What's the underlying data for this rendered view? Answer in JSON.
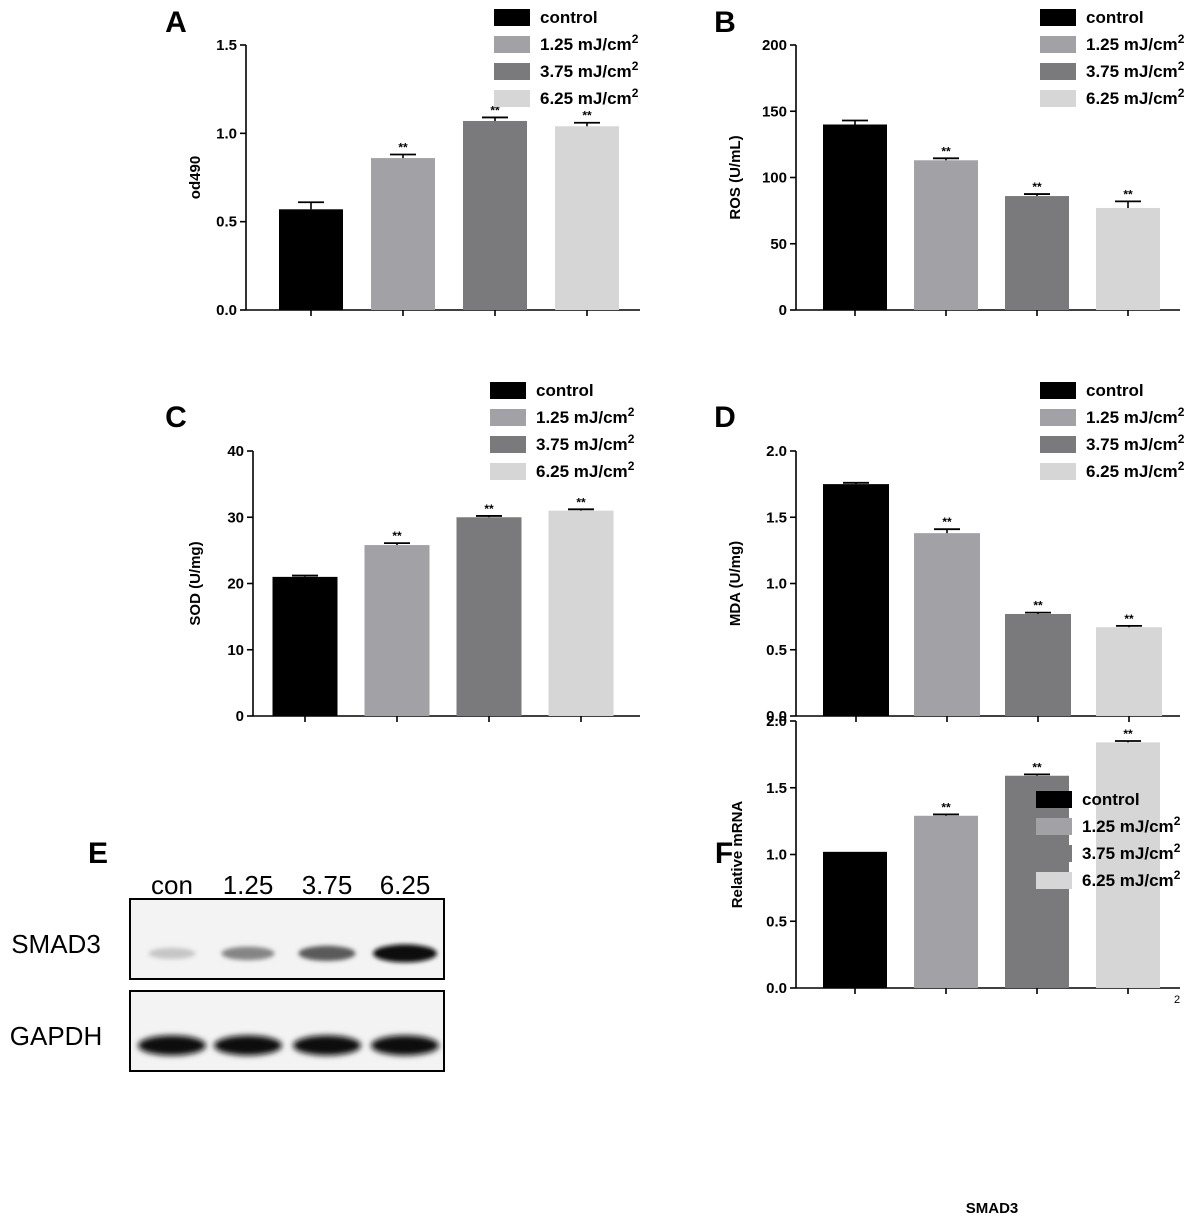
{
  "colors": {
    "control": "#000000",
    "d125": "#a1a1a6",
    "d375": "#7a7a7c",
    "d625": "#d6d6d6"
  },
  "legend": {
    "entries": [
      {
        "label": "control",
        "sup": "",
        "color_key": "control"
      },
      {
        "label": "1.25 mJ/cm",
        "sup": "2",
        "color_key": "d125"
      },
      {
        "label": "3.75 mJ/cm",
        "sup": "2",
        "color_key": "d375"
      },
      {
        "label": "6.25 mJ/cm",
        "sup": "2",
        "color_key": "d625"
      }
    ]
  },
  "chart_data": [
    {
      "panel": "A",
      "type": "bar",
      "ylabel": "od490",
      "xlabel": "",
      "ylim": [
        0,
        1.5
      ],
      "yticks": [
        0.0,
        0.5,
        1.0,
        1.5
      ],
      "ytick_labels": [
        "0.0",
        "0.5",
        "1.0",
        "1.5"
      ],
      "series": [
        {
          "name": "control",
          "value": 0.57,
          "error": 0.04,
          "significance": ""
        },
        {
          "name": "1.25 mJ/cm2",
          "value": 0.86,
          "error": 0.02,
          "significance": "**"
        },
        {
          "name": "3.75 mJ/cm2",
          "value": 1.07,
          "error": 0.02,
          "significance": "**"
        },
        {
          "name": "6.25 mJ/cm2",
          "value": 1.04,
          "error": 0.02,
          "significance": "**"
        }
      ]
    },
    {
      "panel": "B",
      "type": "bar",
      "ylabel": "ROS (U/mL)",
      "xlabel": "",
      "ylim": [
        0,
        200
      ],
      "yticks": [
        0,
        50,
        100,
        150,
        200
      ],
      "ytick_labels": [
        "0",
        "50",
        "100",
        "150",
        "200"
      ],
      "series": [
        {
          "name": "control",
          "value": 140,
          "error": 3,
          "significance": ""
        },
        {
          "name": "1.25 mJ/cm2",
          "value": 113,
          "error": 1.5,
          "significance": "**"
        },
        {
          "name": "3.75 mJ/cm2",
          "value": 86,
          "error": 1.5,
          "significance": "**"
        },
        {
          "name": "6.25 mJ/cm2",
          "value": 77,
          "error": 5,
          "significance": "**"
        }
      ]
    },
    {
      "panel": "C",
      "type": "bar",
      "ylabel": "SOD (U/mg)",
      "xlabel": "",
      "ylim": [
        0,
        40
      ],
      "yticks": [
        0,
        10,
        20,
        30,
        40
      ],
      "ytick_labels": [
        "0",
        "10",
        "20",
        "30",
        "40"
      ],
      "series": [
        {
          "name": "control",
          "value": 21,
          "error": 0.2,
          "significance": ""
        },
        {
          "name": "1.25 mJ/cm2",
          "value": 25.8,
          "error": 0.3,
          "significance": "**"
        },
        {
          "name": "3.75 mJ/cm2",
          "value": 30.0,
          "error": 0.2,
          "significance": "**"
        },
        {
          "name": "6.25 mJ/cm2",
          "value": 31.0,
          "error": 0.2,
          "significance": "**"
        }
      ]
    },
    {
      "panel": "D",
      "type": "bar",
      "ylabel": "MDA (U/mg)",
      "xlabel": "",
      "ylim": [
        0,
        2.0
      ],
      "yticks": [
        0.0,
        0.5,
        1.0,
        1.5,
        2.0
      ],
      "ytick_labels": [
        "0.0",
        "0.5",
        "1.0",
        "1.5",
        "2.0"
      ],
      "series": [
        {
          "name": "control",
          "value": 1.75,
          "error": 0.01,
          "significance": ""
        },
        {
          "name": "1.25 mJ/cm2",
          "value": 1.38,
          "error": 0.03,
          "significance": "**"
        },
        {
          "name": "3.75 mJ/cm2",
          "value": 0.77,
          "error": 0.01,
          "significance": "**"
        },
        {
          "name": "6.25 mJ/cm2",
          "value": 0.67,
          "error": 0.01,
          "significance": "**"
        }
      ]
    },
    {
      "panel": "F",
      "type": "bar",
      "ylabel": "Relative mRNA",
      "xlabel": "SMAD3",
      "corner_note": "2",
      "ylim": [
        0,
        2.0
      ],
      "yticks": [
        0.0,
        0.5,
        1.0,
        1.5,
        2.0
      ],
      "ytick_labels": [
        "0.0",
        "0.5",
        "1.0",
        "1.5",
        "2.0"
      ],
      "series": [
        {
          "name": "control",
          "value": 1.02,
          "error": 0.0,
          "significance": ""
        },
        {
          "name": "1.25 mJ/cm2",
          "value": 1.29,
          "error": 0.01,
          "significance": "**"
        },
        {
          "name": "3.75 mJ/cm2",
          "value": 1.59,
          "error": 0.01,
          "significance": "**"
        },
        {
          "name": "6.25 mJ/cm2",
          "value": 1.84,
          "error": 0.01,
          "significance": "**"
        }
      ]
    }
  ],
  "blot": {
    "panel": "E",
    "lanes": [
      "con",
      "1.25",
      "3.75",
      "6.25"
    ],
    "proteins": [
      {
        "name": "SMAD3",
        "intensities": [
          0.15,
          0.45,
          0.65,
          1.0
        ]
      },
      {
        "name": "GAPDH",
        "intensities": [
          1.0,
          1.0,
          1.0,
          1.0
        ]
      }
    ]
  }
}
